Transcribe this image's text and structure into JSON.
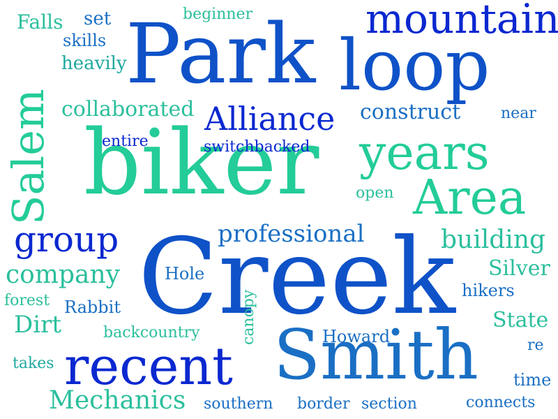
{
  "colors": {
    "blue_dark": "#0a28d0",
    "blue": "#0f52c8",
    "blue_mid": "#1a6fc4",
    "teal": "#1ea8a0",
    "teal_light": "#2bbf9c",
    "green": "#23cc98"
  },
  "words": {
    "park": "Park",
    "loop": "loop",
    "mountain": "mountain",
    "falls": "Falls",
    "set": "set",
    "beginner": "beginner",
    "skills": "skills",
    "heavily": "heavily",
    "salem": "Salem",
    "collaborated": "collaborated",
    "alliance": "Alliance",
    "construct": "construct",
    "near": "near",
    "entire": "entire",
    "switchbacked": "switchbacked",
    "biker": "biker",
    "years": "years",
    "area": "Area",
    "open": "open",
    "group": "group",
    "professional": "professional",
    "building": "building",
    "company": "company",
    "creek": "Creek",
    "hole": "Hole",
    "silver": "Silver",
    "canopy": "canopy",
    "forest": "forest",
    "rabbit": "Rabbit",
    "hikers": "hikers",
    "dirt": "Dirt",
    "state": "State",
    "backcountry": "backcountry",
    "howard": "Howard",
    "re": "re",
    "takes": "takes",
    "recent": "recent",
    "smith": "Smith",
    "time": "time",
    "mechanics": "Mechanics",
    "southern": "southern",
    "border": "border",
    "section": "section",
    "connects": "connects"
  }
}
